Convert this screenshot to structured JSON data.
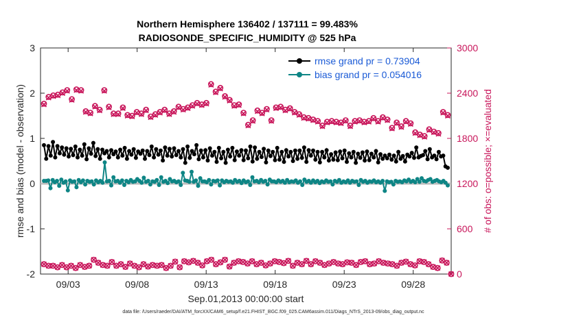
{
  "chart_data": {
    "type": "line",
    "title": "Northern Hemisphere 136402 / 137111 = 99.483%",
    "subtitle": "RADIOSONDE_SPECIFIC_HUMIDITY @ 525 hPa",
    "xlabel": "Sep.01,2013 00:00:00 start",
    "ylabel_left": "rmse and bias (model - observation)",
    "ylabel_right": "# of obs: o=possible; ×=evaluated",
    "footnote": "data file: /Users/raeder/DAI/ATM_forcXX/CAM6_setup/f.e21.FHIST_BGC.f09_025.CAM6assim.011/Diags_NTrS_2013-09/obs_diag_output.nc",
    "xlim": [
      1,
      30.75
    ],
    "ylim_left": [
      -2,
      3
    ],
    "ylim_right": [
      0,
      3000
    ],
    "x_ticks": [
      3,
      8,
      13,
      18,
      23,
      28
    ],
    "x_tick_labels": [
      "09/03",
      "09/08",
      "09/13",
      "09/18",
      "09/23",
      "09/28"
    ],
    "y_ticks_left": [
      "-2",
      "-1",
      "0",
      "1",
      "2",
      "3"
    ],
    "y_ticks_right": [
      "0",
      "600",
      "1200",
      "1800",
      "2400",
      "3000"
    ],
    "legend": [
      "rmse grand pr = 0.73904",
      "bias grand pr = 0.054016"
    ],
    "colors": {
      "rmse": "#000000",
      "bias": "#0e8585",
      "counts": "#c8155a",
      "zero_line": "#bdbdbd",
      "legend_text": "#1a5ad6"
    },
    "x_start": 1.25,
    "x_step": 0.25,
    "series": [
      {
        "name": "rmse",
        "values": [
          0.85,
          0.55,
          0.83,
          0.62,
          0.92,
          0.58,
          0.83,
          0.67,
          0.8,
          0.64,
          0.78,
          0.6,
          0.77,
          0.63,
          0.82,
          0.58,
          0.75,
          0.62,
          0.87,
          0.54,
          0.78,
          0.66,
          0.9,
          0.61,
          0.76,
          0.55,
          0.75,
          0.67,
          0.72,
          0.58,
          0.74,
          0.65,
          0.71,
          0.58,
          0.75,
          0.62,
          0.79,
          0.55,
          0.72,
          0.64,
          0.76,
          0.57,
          0.71,
          0.66,
          0.73,
          0.55,
          0.72,
          0.63,
          0.82,
          0.58,
          0.76,
          0.64,
          0.73,
          0.51,
          0.8,
          0.62,
          0.77,
          0.6,
          0.78,
          0.63,
          0.72,
          0.58,
          0.76,
          0.46,
          0.82,
          0.57,
          0.72,
          0.65,
          0.85,
          0.54,
          0.73,
          0.58,
          0.74,
          0.51,
          0.78,
          0.62,
          0.7,
          0.48,
          0.79,
          0.56,
          0.7,
          0.46,
          0.75,
          0.6,
          0.79,
          0.52,
          0.71,
          0.62,
          0.74,
          0.52,
          0.73,
          0.56,
          0.82,
          0.49,
          0.8,
          0.55,
          0.7,
          0.59,
          0.77,
          0.47,
          0.73,
          0.61,
          0.7,
          0.52,
          0.79,
          0.53,
          0.7,
          0.48,
          0.74,
          0.6,
          0.7,
          0.5,
          0.73,
          0.55,
          0.73,
          0.57,
          0.8,
          0.48,
          0.74,
          0.62,
          0.73,
          0.53,
          0.7,
          0.47,
          0.7,
          0.58,
          0.74,
          0.51,
          0.65,
          0.53,
          0.69,
          0.52,
          0.71,
          0.56,
          0.73,
          0.48,
          0.67,
          0.58,
          0.7,
          0.46,
          0.66,
          0.57,
          0.69,
          0.51,
          0.71,
          0.52,
          0.66,
          0.58,
          0.72,
          0.47,
          0.65,
          0.55,
          0.62,
          0.56,
          0.64,
          0.53,
          0.62,
          0.49,
          0.7,
          0.55,
          0.61,
          0.49,
          0.64,
          0.6,
          0.68,
          0.57,
          0.8,
          0.58,
          0.61,
          0.63,
          0.72,
          0.54,
          0.76,
          0.58,
          0.62,
          0.54,
          0.7,
          0.6,
          0.62,
          0.38,
          0.35
        ]
      },
      {
        "name": "bias",
        "values": [
          0.06,
          0.06,
          0.07,
          -0.1,
          0.08,
          0.03,
          0.06,
          -0.05,
          0.09,
          0.02,
          0.05,
          -0.15,
          0.07,
          0.04,
          0.05,
          -0.08,
          0.08,
          0.03,
          0.07,
          -0.02,
          0.06,
          0.04,
          0.05,
          -0.02,
          0.07,
          0.03,
          0.06,
          0.02,
          0.47,
          0.05,
          0.06,
          -0.04,
          0.14,
          0.05,
          0.06,
          0.02,
          0.07,
          -0.03,
          0.06,
          0.03,
          0.08,
          0.04,
          0.05,
          0.1,
          0.06,
          0.02,
          0.13,
          0.04,
          0.06,
          -0.02,
          0.05,
          0.04,
          0.08,
          -0.03,
          0.14,
          0.04,
          0.06,
          0.01,
          0.1,
          0.05,
          0.06,
          0.03,
          0.05,
          -0.03,
          0.24,
          0.07,
          0.06,
          0.04,
          0.26,
          0.04,
          0.07,
          -0.05,
          0.12,
          0.05,
          0.05,
          0.03,
          0.08,
          -0.02,
          0.06,
          0.05,
          0.07,
          -0.04,
          0.07,
          0.03,
          0.06,
          0.04,
          0.05,
          0.02,
          0.08,
          0.04,
          0.06,
          0.01,
          0.07,
          0.03,
          0.05,
          -0.03,
          0.14,
          0.05,
          0.06,
          0.03,
          0.08,
          0.04,
          0.06,
          -0.02,
          0.09,
          0.05,
          0.05,
          0.03,
          0.07,
          0.04,
          0.06,
          0.02,
          0.08,
          0.03,
          0.05,
          0.04,
          0.07,
          0.02,
          0.05,
          -0.03,
          0.09,
          0.04,
          0.06,
          0.02,
          0.07,
          0.03,
          0.06,
          0.01,
          0.05,
          0.03,
          0.07,
          0.04,
          0.05,
          -0.02,
          0.06,
          0.04,
          0.08,
          0.02,
          0.05,
          0.03,
          0.07,
          0.02,
          0.06,
          0.04,
          0.05,
          -0.03,
          0.08,
          0.04,
          0.06,
          0.02,
          0.05,
          0.04,
          0.07,
          0.03,
          0.05,
          0.02,
          0.06,
          -0.16,
          0.05,
          0.03,
          0.04,
          -0.02,
          0.06,
          0.04,
          0.05,
          0.03,
          0.07,
          0.05,
          0.09,
          0.04,
          0.06,
          0.03,
          0.1,
          0.04,
          0.12,
          0.06,
          0.05,
          0.08,
          0.1,
          0.04,
          0.06,
          0.08,
          0.05,
          0.03,
          0.06,
          0.02,
          -0.04
        ]
      },
      {
        "name": "obs_possible",
        "axis": "right",
        "values": [
          2260,
          2350,
          2370,
          2380,
          2410,
          2440,
          2320,
          2450,
          2440,
          2160,
          2140,
          2230,
          2180,
          2440,
          2220,
          2130,
          2130,
          2210,
          2110,
          2100,
          2150,
          2130,
          2180,
          2090,
          2120,
          2150,
          2180,
          2130,
          2160,
          2220,
          2190,
          2210,
          2240,
          2270,
          2250,
          2270,
          2520,
          2420,
          2470,
          2360,
          2310,
          2240,
          2250,
          2140,
          1980,
          2040,
          2170,
          2140,
          2190,
          2040,
          2210,
          2220,
          2180,
          2200,
          2150,
          2120,
          2080,
          2070,
          2050,
          2030,
          1970,
          2020,
          2030,
          2020,
          2010,
          2040,
          1970,
          2030,
          2040,
          2020,
          2030,
          2070,
          2030,
          2080,
          2050,
          1940,
          2010,
          1960,
          2030,
          2000,
          1880,
          1850,
          1830,
          1920,
          1890,
          1870,
          2150,
          2110
        ]
      },
      {
        "name": "obs_evaluated",
        "axis": "right",
        "values": [
          2250,
          2340,
          2360,
          2370,
          2400,
          2430,
          2310,
          2440,
          2430,
          2150,
          2130,
          2220,
          2170,
          2430,
          2210,
          2120,
          2120,
          2200,
          2100,
          2090,
          2140,
          2120,
          2170,
          2080,
          2110,
          2140,
          2170,
          2120,
          2150,
          2210,
          2180,
          2200,
          2230,
          2260,
          2240,
          2260,
          2510,
          2410,
          2460,
          2350,
          2300,
          2230,
          2240,
          2130,
          1970,
          2030,
          2160,
          2130,
          2180,
          2030,
          2200,
          2210,
          2170,
          2190,
          2140,
          2110,
          2070,
          2060,
          2040,
          2020,
          1960,
          2010,
          2020,
          2010,
          2000,
          2030,
          1960,
          2020,
          2030,
          2010,
          2020,
          2060,
          2020,
          2070,
          2040,
          1930,
          2000,
          1950,
          2020,
          1990,
          1870,
          1840,
          1820,
          1910,
          1880,
          1860,
          2140,
          2100
        ]
      },
      {
        "name": "obs_low_possible",
        "axis": "right",
        "values": [
          130,
          110,
          110,
          90,
          120,
          90,
          110,
          80,
          120,
          95,
          110,
          190,
          150,
          120,
          110,
          160,
          110,
          130,
          95,
          140,
          110,
          90,
          130,
          100,
          120,
          110,
          120,
          80,
          110,
          165,
          90,
          170,
          155,
          175,
          150,
          115,
          170,
          190,
          130,
          155,
          190,
          100,
          150,
          170,
          160,
          140,
          170,
          130,
          150,
          115,
          140,
          170,
          160,
          145,
          175,
          110,
          150,
          130,
          175,
          130,
          170,
          150,
          120,
          140,
          160,
          140,
          130,
          155,
          150,
          120,
          160,
          170,
          130,
          140,
          170,
          150,
          140,
          130,
          110,
          150,
          165,
          130,
          115,
          170,
          160,
          130,
          95,
          80,
          180,
          150,
          0
        ]
      }
    ]
  }
}
